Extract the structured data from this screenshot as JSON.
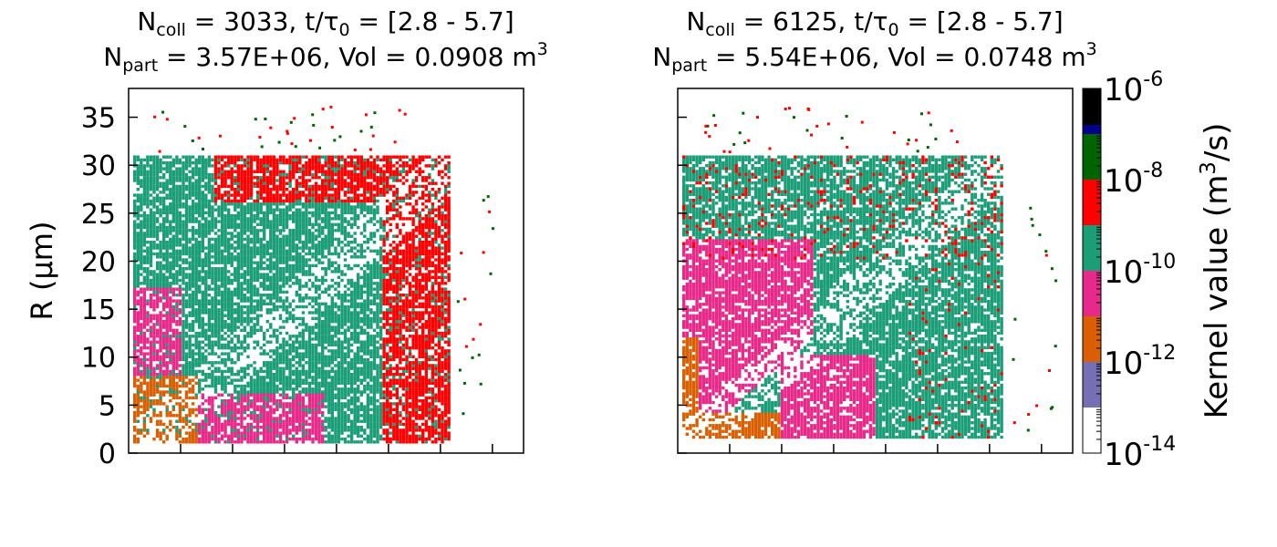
{
  "panels": [
    {
      "title_line1": {
        "N": "N",
        "N_sub": "coll",
        "rest1": " = 3033, t/τ",
        "tau_sub": "0",
        "rest2": " = [2.8 - 5.7]"
      },
      "title_line2": {
        "N": "N",
        "N_sub": "part",
        "rest": " = 3.57E+06, Vol = 0.0908 m",
        "sup": "3"
      }
    },
    {
      "title_line1": {
        "N": "N",
        "N_sub": "coll",
        "rest1": " = 6125, t/τ",
        "tau_sub": "0",
        "rest2": " = [2.8 - 5.7]"
      },
      "title_line2": {
        "N": "N",
        "N_sub": "part",
        "rest": " = 5.54E+06, Vol = 0.0748 m",
        "sup": "3"
      }
    }
  ],
  "colorbar": {
    "label_main": "Kernel value (m",
    "label_sup": "3",
    "label_tail": "/s)",
    "ticks": [
      {
        "base": "10",
        "exp": "-6",
        "log": -6
      },
      {
        "base": "10",
        "exp": "-8",
        "log": -8
      },
      {
        "base": "10",
        "exp": "-10",
        "log": -10
      },
      {
        "base": "10",
        "exp": "-12",
        "log": -12
      },
      {
        "base": "10",
        "exp": "-14",
        "log": -14
      }
    ]
  },
  "chart_data": [
    {
      "type": "heatmap",
      "ylabel": "R (μm)",
      "ylim": [
        0,
        38
      ],
      "yticks": [
        0,
        5,
        10,
        15,
        20,
        25,
        30,
        35
      ],
      "filled_region_r": [
        1,
        31
      ],
      "colormap_levels": [
        {
          "from_log": -14,
          "to_log": -13,
          "color": "#ffffff"
        },
        {
          "from_log": -13,
          "to_log": -12,
          "color": "#7570b3"
        },
        {
          "from_log": -12,
          "to_log": -11,
          "color": "#d95f02"
        },
        {
          "from_log": -11,
          "to_log": -10,
          "color": "#e7298a"
        },
        {
          "from_log": -10,
          "to_log": -9,
          "color": "#1b9e77"
        },
        {
          "from_log": -9,
          "to_log": -8,
          "color": "#ff0000"
        },
        {
          "from_log": -8,
          "to_log": -7,
          "color": "#006400"
        },
        {
          "from_log": -7,
          "to_log": -6,
          "color": "#00008b"
        },
        {
          "from_log": -6,
          "to_log": -6,
          "color": "#000000"
        }
      ],
      "dominant_kernel_log_by_zone": {
        "large_R": -9,
        "middle": -10,
        "small_R": -11,
        "smallest_R": -12
      }
    },
    {
      "type": "heatmap",
      "ylim": [
        0,
        38
      ],
      "yticks": [
        0,
        5,
        10,
        15,
        20,
        25,
        30,
        35
      ],
      "filled_region_r": [
        1.5,
        31
      ],
      "colormap_levels": [
        {
          "from_log": -14,
          "to_log": -13,
          "color": "#ffffff"
        },
        {
          "from_log": -13,
          "to_log": -12,
          "color": "#7570b3"
        },
        {
          "from_log": -12,
          "to_log": -11,
          "color": "#d95f02"
        },
        {
          "from_log": -11,
          "to_log": -10,
          "color": "#e7298a"
        },
        {
          "from_log": -10,
          "to_log": -9,
          "color": "#1b9e77"
        },
        {
          "from_log": -9,
          "to_log": -8,
          "color": "#ff0000"
        },
        {
          "from_log": -8,
          "to_log": -7,
          "color": "#006400"
        },
        {
          "from_log": -7,
          "to_log": -6,
          "color": "#00008b"
        },
        {
          "from_log": -6,
          "to_log": -6,
          "color": "#000000"
        }
      ],
      "dominant_kernel_log_by_zone": {
        "large_R": -10,
        "middle": -10,
        "small_R": -11,
        "smallest_R": -12
      }
    }
  ]
}
